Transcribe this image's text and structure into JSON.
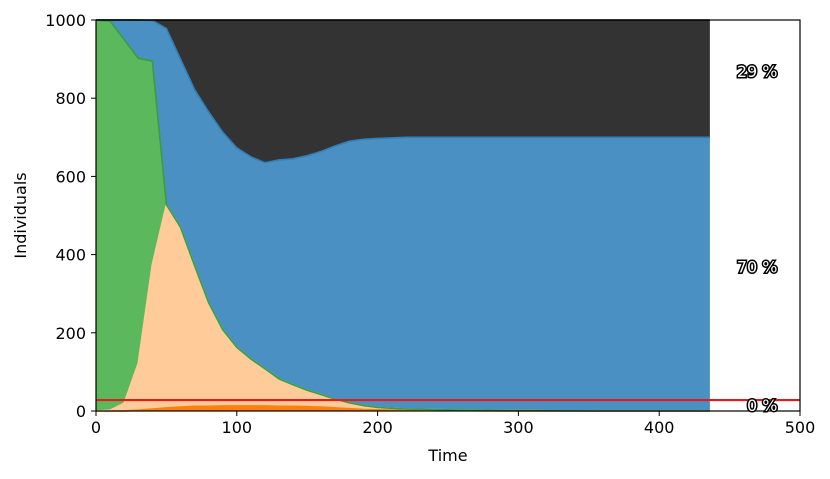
{
  "chart_data": {
    "type": "area",
    "xlabel": "Time",
    "ylabel": "Individuals",
    "xlim": [
      0,
      500
    ],
    "ylim": [
      0,
      1000
    ],
    "xticks": [
      0,
      100,
      200,
      300,
      400,
      500
    ],
    "yticks": [
      0,
      200,
      400,
      600,
      800,
      1000
    ],
    "grid": false,
    "x": [
      0,
      10,
      20,
      30,
      40,
      50,
      60,
      70,
      80,
      90,
      100,
      110,
      120,
      130,
      140,
      150,
      160,
      170,
      180,
      190,
      200,
      220,
      250,
      300,
      350,
      400,
      436
    ],
    "series": [
      {
        "key": "orange_dark",
        "color": "#ff7f0e",
        "values": [
          0,
          0,
          0,
          2,
          5,
          8,
          10,
          12,
          12,
          13,
          13,
          13,
          13,
          12,
          12,
          11,
          10,
          8,
          6,
          4,
          3,
          2,
          1,
          0,
          0,
          0,
          0
        ]
      },
      {
        "key": "orange_light",
        "color": "#ffcc99",
        "values": [
          0,
          2,
          20,
          120,
          370,
          520,
          460,
          360,
          265,
          195,
          150,
          120,
          95,
          70,
          55,
          42,
          32,
          22,
          15,
          10,
          6,
          3,
          2,
          1,
          0,
          0,
          0
        ]
      },
      {
        "key": "green",
        "color": "#5cb85c",
        "values": [
          1000,
          995,
          930,
          780,
          520,
          0,
          0,
          0,
          0,
          0,
          0,
          0,
          0,
          0,
          0,
          0,
          0,
          0,
          0,
          0,
          0,
          0,
          0,
          0,
          0,
          0,
          0
        ]
      },
      {
        "key": "blue",
        "color": "#4a90c2",
        "values": [
          0,
          3,
          50,
          98,
          104,
          450,
          430,
          450,
          488,
          505,
          510,
          517,
          527,
          560,
          578,
          600,
          622,
          648,
          669,
          681,
          688,
          695,
          697,
          699,
          700,
          700,
          700
        ]
      },
      {
        "key": "black",
        "color": "#333333",
        "values": [
          0,
          0,
          0,
          0,
          1,
          22,
          100,
          178,
          235,
          287,
          327,
          350,
          365,
          358,
          355,
          347,
          336,
          322,
          310,
          305,
          303,
          300,
          300,
          300,
          300,
          300,
          300
        ]
      }
    ],
    "hline": {
      "y": 28,
      "color": "#e41a1c"
    },
    "annotations": [
      {
        "text": "29 %",
        "x": 435,
        "y": 870
      },
      {
        "text": "70 %",
        "x": 435,
        "y": 370
      },
      {
        "text": "0 %",
        "x": 435,
        "y": 15
      }
    ]
  }
}
